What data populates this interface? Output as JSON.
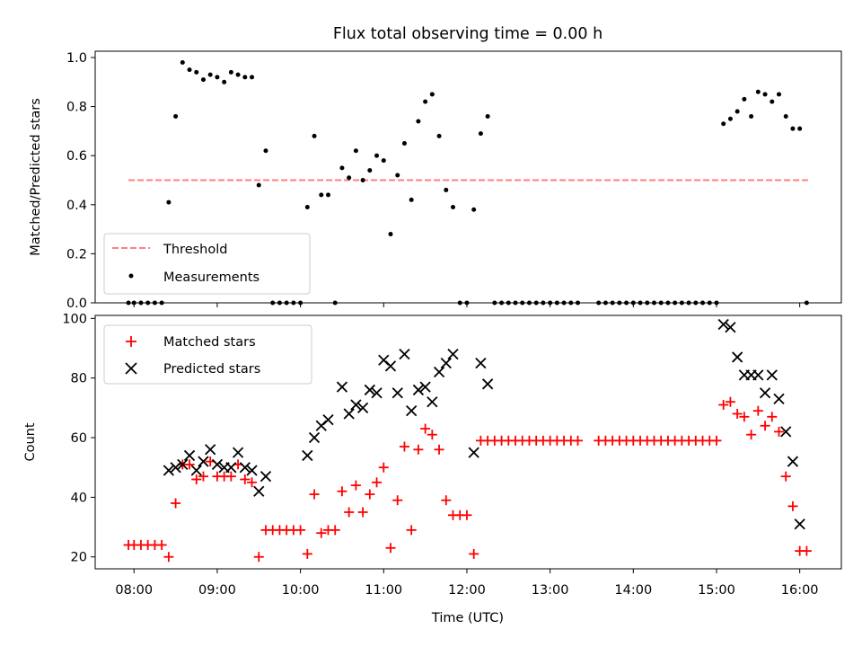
{
  "figure": {
    "title": "Flux total observing time = 0.00 h",
    "xlabel": "Time (UTC)",
    "xticks": [
      "08:00",
      "09:00",
      "10:00",
      "11:00",
      "12:00",
      "13:00",
      "14:00",
      "15:00",
      "16:00"
    ]
  },
  "chart_data": [
    {
      "type": "scatter",
      "panel": "top",
      "ylabel": "Matched/Predicted stars",
      "ylim": [
        0,
        1.0
      ],
      "yticks": [
        "0.0",
        "0.2",
        "0.4",
        "0.6",
        "0.8",
        "1.0"
      ],
      "xlim": [
        "07:32",
        "16:30"
      ],
      "legend": {
        "placement": "lower-left",
        "entries": [
          "Threshold",
          "Measurements"
        ]
      },
      "threshold": {
        "name": "Threshold",
        "value": 0.5,
        "x_start": "07:56",
        "x_end": "16:06",
        "color": "#ff7f7f",
        "style": "dashed"
      },
      "series": [
        {
          "name": "Measurements",
          "color": "#000000",
          "points": [
            [
              "07:56",
              0.0
            ],
            [
              "08:00",
              0.0
            ],
            [
              "08:05",
              0.0
            ],
            [
              "08:10",
              0.0
            ],
            [
              "08:15",
              0.0
            ],
            [
              "08:20",
              0.0
            ],
            [
              "08:25",
              0.41
            ],
            [
              "08:30",
              0.76
            ],
            [
              "08:35",
              0.98
            ],
            [
              "08:40",
              0.95
            ],
            [
              "08:45",
              0.94
            ],
            [
              "08:50",
              0.91
            ],
            [
              "08:55",
              0.93
            ],
            [
              "09:00",
              0.92
            ],
            [
              "09:05",
              0.9
            ],
            [
              "09:10",
              0.94
            ],
            [
              "09:15",
              0.93
            ],
            [
              "09:20",
              0.92
            ],
            [
              "09:25",
              0.92
            ],
            [
              "09:30",
              0.48
            ],
            [
              "09:35",
              0.62
            ],
            [
              "09:40",
              0.0
            ],
            [
              "09:45",
              0.0
            ],
            [
              "09:50",
              0.0
            ],
            [
              "09:55",
              0.0
            ],
            [
              "10:00",
              0.0
            ],
            [
              "10:05",
              0.39
            ],
            [
              "10:10",
              0.68
            ],
            [
              "10:15",
              0.44
            ],
            [
              "10:20",
              0.44
            ],
            [
              "10:25",
              0.0
            ],
            [
              "10:30",
              0.55
            ],
            [
              "10:35",
              0.51
            ],
            [
              "10:40",
              0.62
            ],
            [
              "10:45",
              0.5
            ],
            [
              "10:50",
              0.54
            ],
            [
              "10:55",
              0.6
            ],
            [
              "11:00",
              0.58
            ],
            [
              "11:05",
              0.28
            ],
            [
              "11:10",
              0.52
            ],
            [
              "11:15",
              0.65
            ],
            [
              "11:20",
              0.42
            ],
            [
              "11:25",
              0.74
            ],
            [
              "11:30",
              0.82
            ],
            [
              "11:35",
              0.85
            ],
            [
              "11:40",
              0.68
            ],
            [
              "11:45",
              0.46
            ],
            [
              "11:50",
              0.39
            ],
            [
              "11:55",
              0.0
            ],
            [
              "12:00",
              0.0
            ],
            [
              "12:05",
              0.38
            ],
            [
              "12:10",
              0.69
            ],
            [
              "12:15",
              0.76
            ],
            [
              "12:20",
              0.0
            ],
            [
              "12:25",
              0.0
            ],
            [
              "12:30",
              0.0
            ],
            [
              "12:35",
              0.0
            ],
            [
              "12:40",
              0.0
            ],
            [
              "12:45",
              0.0
            ],
            [
              "12:50",
              0.0
            ],
            [
              "12:55",
              0.0
            ],
            [
              "13:00",
              0.0
            ],
            [
              "13:05",
              0.0
            ],
            [
              "13:10",
              0.0
            ],
            [
              "13:15",
              0.0
            ],
            [
              "13:20",
              0.0
            ],
            [
              "13:35",
              0.0
            ],
            [
              "13:40",
              0.0
            ],
            [
              "13:45",
              0.0
            ],
            [
              "13:50",
              0.0
            ],
            [
              "13:55",
              0.0
            ],
            [
              "14:00",
              0.0
            ],
            [
              "14:05",
              0.0
            ],
            [
              "14:10",
              0.0
            ],
            [
              "14:15",
              0.0
            ],
            [
              "14:20",
              0.0
            ],
            [
              "14:25",
              0.0
            ],
            [
              "14:30",
              0.0
            ],
            [
              "14:35",
              0.0
            ],
            [
              "14:40",
              0.0
            ],
            [
              "14:45",
              0.0
            ],
            [
              "14:50",
              0.0
            ],
            [
              "14:55",
              0.0
            ],
            [
              "15:00",
              0.0
            ],
            [
              "15:05",
              0.73
            ],
            [
              "15:10",
              0.75
            ],
            [
              "15:15",
              0.78
            ],
            [
              "15:20",
              0.83
            ],
            [
              "15:25",
              0.76
            ],
            [
              "15:30",
              0.86
            ],
            [
              "15:35",
              0.85
            ],
            [
              "15:40",
              0.82
            ],
            [
              "15:45",
              0.85
            ],
            [
              "15:50",
              0.76
            ],
            [
              "15:55",
              0.71
            ],
            [
              "16:00",
              0.71
            ],
            [
              "16:05",
              0.0
            ]
          ]
        }
      ]
    },
    {
      "type": "scatter",
      "panel": "bottom",
      "ylabel": "Count",
      "ylim": [
        16,
        101
      ],
      "yticks": [
        "20",
        "40",
        "60",
        "80",
        "100"
      ],
      "xlim": [
        "07:32",
        "16:30"
      ],
      "legend": {
        "placement": "upper-left",
        "entries": [
          "Matched stars",
          "Predicted stars"
        ]
      },
      "series": [
        {
          "name": "Matched stars",
          "marker": "plus",
          "color": "#ff0000",
          "points": [
            [
              "07:56",
              24
            ],
            [
              "08:00",
              24
            ],
            [
              "08:05",
              24
            ],
            [
              "08:10",
              24
            ],
            [
              "08:15",
              24
            ],
            [
              "08:20",
              24
            ],
            [
              "08:25",
              20
            ],
            [
              "08:30",
              38
            ],
            [
              "08:35",
              51
            ],
            [
              "08:40",
              51
            ],
            [
              "08:45",
              46
            ],
            [
              "08:50",
              47
            ],
            [
              "08:55",
              52
            ],
            [
              "09:00",
              47
            ],
            [
              "09:05",
              47
            ],
            [
              "09:10",
              47
            ],
            [
              "09:15",
              51
            ],
            [
              "09:20",
              46
            ],
            [
              "09:25",
              45
            ],
            [
              "09:30",
              20
            ],
            [
              "09:35",
              29
            ],
            [
              "09:40",
              29
            ],
            [
              "09:45",
              29
            ],
            [
              "09:50",
              29
            ],
            [
              "09:55",
              29
            ],
            [
              "10:00",
              29
            ],
            [
              "10:05",
              21
            ],
            [
              "10:10",
              41
            ],
            [
              "10:15",
              28
            ],
            [
              "10:20",
              29
            ],
            [
              "10:25",
              29
            ],
            [
              "10:30",
              42
            ],
            [
              "10:35",
              35
            ],
            [
              "10:40",
              44
            ],
            [
              "10:45",
              35
            ],
            [
              "10:50",
              41
            ],
            [
              "10:55",
              45
            ],
            [
              "11:00",
              50
            ],
            [
              "11:05",
              23
            ],
            [
              "11:10",
              39
            ],
            [
              "11:15",
              57
            ],
            [
              "11:20",
              29
            ],
            [
              "11:25",
              56
            ],
            [
              "11:30",
              63
            ],
            [
              "11:35",
              61
            ],
            [
              "11:40",
              56
            ],
            [
              "11:45",
              39
            ],
            [
              "11:50",
              34
            ],
            [
              "11:55",
              34
            ],
            [
              "12:00",
              34
            ],
            [
              "12:05",
              21
            ],
            [
              "12:10",
              59
            ],
            [
              "12:15",
              59
            ],
            [
              "12:20",
              59
            ],
            [
              "12:25",
              59
            ],
            [
              "12:30",
              59
            ],
            [
              "12:35",
              59
            ],
            [
              "12:40",
              59
            ],
            [
              "12:45",
              59
            ],
            [
              "12:50",
              59
            ],
            [
              "12:55",
              59
            ],
            [
              "13:00",
              59
            ],
            [
              "13:05",
              59
            ],
            [
              "13:10",
              59
            ],
            [
              "13:15",
              59
            ],
            [
              "13:20",
              59
            ],
            [
              "13:35",
              59
            ],
            [
              "13:40",
              59
            ],
            [
              "13:45",
              59
            ],
            [
              "13:50",
              59
            ],
            [
              "13:55",
              59
            ],
            [
              "14:00",
              59
            ],
            [
              "14:05",
              59
            ],
            [
              "14:10",
              59
            ],
            [
              "14:15",
              59
            ],
            [
              "14:20",
              59
            ],
            [
              "14:25",
              59
            ],
            [
              "14:30",
              59
            ],
            [
              "14:35",
              59
            ],
            [
              "14:40",
              59
            ],
            [
              "14:45",
              59
            ],
            [
              "14:50",
              59
            ],
            [
              "14:55",
              59
            ],
            [
              "15:00",
              59
            ],
            [
              "15:05",
              71
            ],
            [
              "15:10",
              72
            ],
            [
              "15:15",
              68
            ],
            [
              "15:20",
              67
            ],
            [
              "15:25",
              61
            ],
            [
              "15:30",
              69
            ],
            [
              "15:35",
              64
            ],
            [
              "15:40",
              67
            ],
            [
              "15:45",
              62
            ],
            [
              "15:50",
              47
            ],
            [
              "15:55",
              37
            ],
            [
              "16:00",
              22
            ],
            [
              "16:05",
              22
            ]
          ]
        },
        {
          "name": "Predicted stars",
          "marker": "x",
          "color": "#000000",
          "points": [
            [
              "08:25",
              49
            ],
            [
              "08:30",
              50
            ],
            [
              "08:35",
              51
            ],
            [
              "08:40",
              54
            ],
            [
              "08:45",
              49
            ],
            [
              "08:50",
              52
            ],
            [
              "08:55",
              56
            ],
            [
              "09:00",
              51
            ],
            [
              "09:05",
              50
            ],
            [
              "09:10",
              50
            ],
            [
              "09:15",
              55
            ],
            [
              "09:20",
              50
            ],
            [
              "09:25",
              49
            ],
            [
              "09:30",
              42
            ],
            [
              "09:35",
              47
            ],
            [
              "10:05",
              54
            ],
            [
              "10:10",
              60
            ],
            [
              "10:15",
              64
            ],
            [
              "10:20",
              66
            ],
            [
              "10:30",
              77
            ],
            [
              "10:35",
              68
            ],
            [
              "10:40",
              71
            ],
            [
              "10:45",
              70
            ],
            [
              "10:50",
              76
            ],
            [
              "10:55",
              75
            ],
            [
              "11:00",
              86
            ],
            [
              "11:05",
              84
            ],
            [
              "11:10",
              75
            ],
            [
              "11:15",
              88
            ],
            [
              "11:20",
              69
            ],
            [
              "11:25",
              76
            ],
            [
              "11:30",
              77
            ],
            [
              "11:35",
              72
            ],
            [
              "11:40",
              82
            ],
            [
              "11:45",
              85
            ],
            [
              "11:50",
              88
            ],
            [
              "12:05",
              55
            ],
            [
              "12:10",
              85
            ],
            [
              "12:15",
              78
            ],
            [
              "15:05",
              98
            ],
            [
              "15:10",
              97
            ],
            [
              "15:15",
              87
            ],
            [
              "15:20",
              81
            ],
            [
              "15:25",
              81
            ],
            [
              "15:30",
              81
            ],
            [
              "15:35",
              75
            ],
            [
              "15:40",
              81
            ],
            [
              "15:45",
              73
            ],
            [
              "15:50",
              62
            ],
            [
              "15:55",
              52
            ],
            [
              "16:00",
              31
            ]
          ]
        }
      ]
    }
  ]
}
